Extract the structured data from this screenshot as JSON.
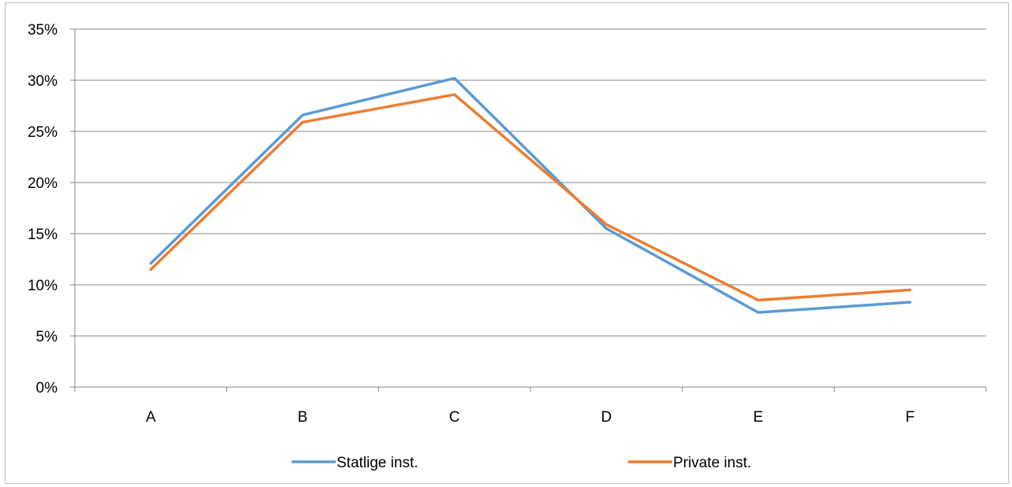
{
  "chart_data": {
    "type": "line",
    "categories": [
      "A",
      "B",
      "C",
      "D",
      "E",
      "F"
    ],
    "ylim": [
      0,
      0.35
    ],
    "yticks": [
      {
        "value": 0,
        "label": "0%"
      },
      {
        "value": 0.05,
        "label": "5%"
      },
      {
        "value": 0.1,
        "label": "10%"
      },
      {
        "value": 0.15,
        "label": "15%"
      },
      {
        "value": 0.2,
        "label": "20%"
      },
      {
        "value": 0.25,
        "label": "25%"
      },
      {
        "value": 0.3,
        "label": "30%"
      },
      {
        "value": 0.35,
        "label": "35%"
      }
    ],
    "grid": true,
    "legend_position": "bottom",
    "series": [
      {
        "name": "Statlige inst.",
        "color": "#5b9bd5",
        "values": [
          0.121,
          0.266,
          0.302,
          0.155,
          0.073,
          0.083
        ]
      },
      {
        "name": "Private inst.",
        "color": "#ed7d31",
        "values": [
          0.115,
          0.259,
          0.286,
          0.159,
          0.085,
          0.095
        ]
      }
    ],
    "title": "",
    "xlabel": "",
    "ylabel": ""
  }
}
